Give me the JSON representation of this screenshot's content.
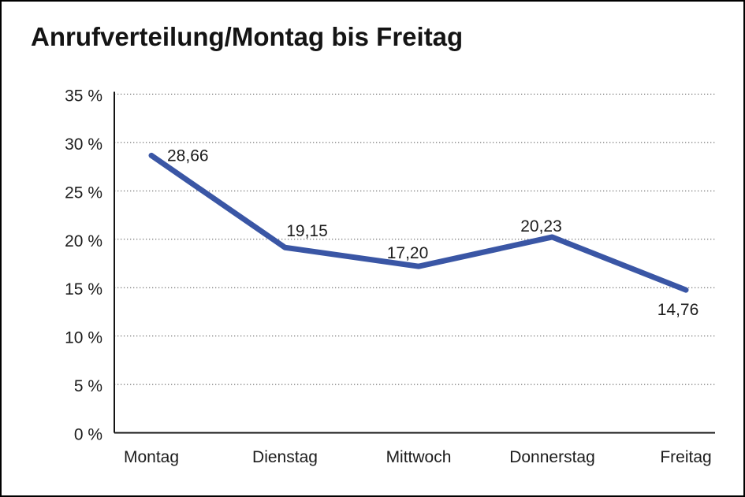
{
  "chart_data": {
    "type": "line",
    "title": "Anrufverteilung/Montag bis Freitag",
    "categories": [
      "Montag",
      "Dienstag",
      "Mittwoch",
      "Donnerstag",
      "Freitag"
    ],
    "values": [
      28.66,
      19.15,
      17.2,
      20.23,
      14.76
    ],
    "value_labels": [
      "28,66",
      "19,15",
      "17,20",
      "20,23",
      "14,76"
    ],
    "xlabel": "",
    "ylabel": "",
    "ylim": [
      0,
      35
    ],
    "ytick_step": 5,
    "ytick_labels": [
      "0 %",
      "5 %",
      "10 %",
      "15 %",
      "20 %",
      "25 %",
      "30 %",
      "35 %"
    ],
    "grid": true,
    "legend_position": "none"
  },
  "colors": {
    "line": "#3A56A5",
    "text": "#1C1C1C",
    "grid": "#555555",
    "axis": "#141414",
    "border": "#000000",
    "background": "#FFFFFF"
  }
}
